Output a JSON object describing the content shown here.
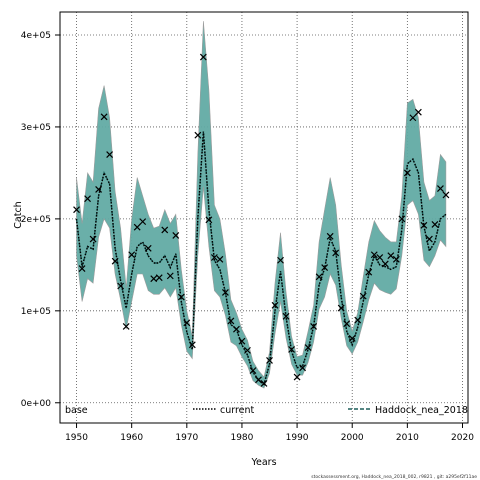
{
  "chart_data": {
    "type": "line",
    "title": "",
    "xlabel": "Years",
    "ylabel": "Catch",
    "xlim": [
      1947,
      2021
    ],
    "ylim": [
      -22000,
      425000
    ],
    "x_ticks": [
      1950,
      1960,
      1970,
      1980,
      1990,
      2000,
      2010,
      2020
    ],
    "x_tick_labels": [
      "1950",
      "1960",
      "1970",
      "1980",
      "1990",
      "2000",
      "2010",
      "2020"
    ],
    "y_ticks": [
      0,
      100000,
      200000,
      300000,
      400000
    ],
    "y_tick_labels": [
      "0e+00",
      "1e+05",
      "2e+05",
      "3e+05",
      "4e+05"
    ],
    "grid": true,
    "legend_position": "bottom",
    "legend": [
      {
        "label": "base",
        "style": "none"
      },
      {
        "label": "current",
        "style": "dotted"
      },
      {
        "label": "Haddock_nea_2018",
        "style": "dashed"
      }
    ],
    "colors": {
      "band": "#5aaba5",
      "band_outer": "#9c9c9c",
      "line": "#000000",
      "grid": "#555555"
    },
    "series": [
      {
        "name": "current",
        "x": [
          1950,
          1951,
          1952,
          1953,
          1954,
          1955,
          1956,
          1957,
          1958,
          1959,
          1960,
          1961,
          1962,
          1963,
          1964,
          1965,
          1966,
          1967,
          1968,
          1969,
          1970,
          1971,
          1972,
          1973,
          1974,
          1975,
          1976,
          1977,
          1978,
          1979,
          1980,
          1981,
          1982,
          1983,
          1984,
          1985,
          1986,
          1987,
          1988,
          1989,
          1990,
          1991,
          1992,
          1993,
          1994,
          1995,
          1996,
          1997,
          1998,
          1999,
          2000,
          2001,
          2002,
          2003,
          2004,
          2005,
          2006,
          2007,
          2008,
          2009,
          2010,
          2011,
          2012,
          2013,
          2014,
          2015,
          2016,
          2017
        ],
        "y": [
          200000,
          148000,
          170000,
          167000,
          225000,
          250000,
          238000,
          168000,
          133000,
          103000,
          140000,
          170000,
          175000,
          160000,
          152000,
          152000,
          160000,
          147000,
          162000,
          110000,
          77000,
          58000,
          200000,
          295000,
          210000,
          155000,
          145000,
          120000,
          85000,
          80000,
          63000,
          52000,
          33000,
          25000,
          20000,
          42000,
          100000,
          143000,
          93000,
          56000,
          38000,
          40000,
          58000,
          83000,
          128000,
          146000,
          179000,
          165000,
          115000,
          78000,
          63000,
          82000,
          110000,
          140000,
          160000,
          150000,
          148000,
          145000,
          148000,
          188000,
          260000,
          265000,
          250000,
          192000,
          165000,
          175000,
          200000,
          205000
        ]
      },
      {
        "name": "Haddock_nea_2018",
        "x": [
          1950,
          1951,
          1952,
          1953,
          1954,
          1955,
          1956,
          1957,
          1958,
          1959,
          1960,
          1961,
          1962,
          1963,
          1964,
          1965,
          1966,
          1967,
          1968,
          1969,
          1970,
          1971,
          1972,
          1973,
          1974,
          1975,
          1976,
          1977,
          1978,
          1979,
          1980,
          1981,
          1982,
          1983,
          1984,
          1985,
          1986,
          1987,
          1988,
          1989,
          1990,
          1991,
          1992,
          1993,
          1994,
          1995,
          1996,
          1997,
          1998,
          1999,
          2000,
          2001,
          2002,
          2003,
          2004,
          2005,
          2006,
          2007,
          2008,
          2009,
          2010,
          2011,
          2012,
          2013,
          2014,
          2015,
          2016,
          2017
        ],
        "y": [
          200000,
          148000,
          170000,
          167000,
          225000,
          250000,
          238000,
          168000,
          133000,
          103000,
          140000,
          170000,
          175000,
          160000,
          152000,
          152000,
          160000,
          147000,
          162000,
          110000,
          77000,
          58000,
          200000,
          295000,
          210000,
          155000,
          145000,
          120000,
          85000,
          80000,
          63000,
          52000,
          33000,
          25000,
          20000,
          42000,
          100000,
          143000,
          93000,
          56000,
          38000,
          40000,
          58000,
          83000,
          128000,
          146000,
          179000,
          165000,
          115000,
          78000,
          63000,
          82000,
          110000,
          140000,
          160000,
          150000,
          148000,
          145000,
          148000,
          188000,
          260000,
          265000,
          250000,
          192000,
          165000,
          175000,
          200000,
          205000
        ]
      }
    ],
    "band_lower": [
      160000,
      110000,
      135000,
      130000,
      180000,
      200000,
      190000,
      140000,
      112000,
      80000,
      110000,
      140000,
      140000,
      122000,
      118000,
      118000,
      125000,
      115000,
      125000,
      85000,
      56000,
      48000,
      160000,
      235000,
      170000,
      122000,
      115000,
      95000,
      66000,
      62000,
      50000,
      40000,
      24000,
      19000,
      16000,
      32000,
      75000,
      110000,
      70000,
      42000,
      30000,
      30000,
      44000,
      66000,
      102000,
      115000,
      140000,
      128000,
      92000,
      62000,
      53000,
      66000,
      88000,
      112000,
      130000,
      123000,
      120000,
      118000,
      124000,
      160000,
      215000,
      220000,
      205000,
      155000,
      148000,
      160000,
      177000,
      170000
    ],
    "band_upper": [
      245000,
      195000,
      250000,
      240000,
      320000,
      345000,
      310000,
      230000,
      190000,
      125000,
      200000,
      245000,
      225000,
      205000,
      190000,
      192000,
      210000,
      195000,
      205000,
      145000,
      100000,
      72000,
      270000,
      415000,
      340000,
      215000,
      200000,
      162000,
      112000,
      98000,
      80000,
      68000,
      45000,
      35000,
      28000,
      55000,
      130000,
      185000,
      120000,
      72000,
      50000,
      52000,
      78000,
      106000,
      175000,
      210000,
      245000,
      215000,
      150000,
      100000,
      78000,
      98000,
      137000,
      175000,
      198000,
      187000,
      180000,
      175000,
      175000,
      225000,
      326000,
      330000,
      310000,
      240000,
      220000,
      225000,
      270000,
      262000
    ],
    "observed": {
      "name": "base",
      "marker": "x",
      "x": [
        1950,
        1951,
        1952,
        1953,
        1954,
        1955,
        1956,
        1957,
        1958,
        1959,
        1960,
        1961,
        1962,
        1963,
        1964,
        1965,
        1966,
        1967,
        1968,
        1969,
        1970,
        1971,
        1972,
        1973,
        1974,
        1975,
        1976,
        1977,
        1978,
        1979,
        1980,
        1981,
        1982,
        1983,
        1984,
        1985,
        1986,
        1987,
        1988,
        1989,
        1990,
        1991,
        1992,
        1993,
        1994,
        1995,
        1996,
        1997,
        1998,
        1999,
        2000,
        2001,
        2002,
        2003,
        2004,
        2005,
        2006,
        2007,
        2008,
        2009,
        2010,
        2011,
        2012,
        2013,
        2014,
        2015,
        2016,
        2017
      ],
      "y": [
        210000,
        146000,
        222000,
        178000,
        232000,
        311000,
        270000,
        154000,
        127000,
        83000,
        161000,
        191000,
        197000,
        168000,
        135000,
        136000,
        188000,
        138000,
        182000,
        115000,
        87000,
        63000,
        291000,
        376000,
        199000,
        158000,
        156000,
        120000,
        89000,
        80000,
        67000,
        57000,
        35000,
        25000,
        21000,
        46000,
        106000,
        155000,
        94000,
        58000,
        28000,
        38000,
        60000,
        83000,
        137000,
        147000,
        181000,
        163000,
        103000,
        86000,
        70000,
        90000,
        116000,
        142000,
        161000,
        158000,
        151000,
        160000,
        156000,
        200000,
        250000,
        310000,
        316000,
        193000,
        178000,
        194000,
        233000,
        226000
      ]
    }
  },
  "footer": "stockassessment.org, Haddock_nea_2018_002, r9821 , git: a295ef2f11ae"
}
